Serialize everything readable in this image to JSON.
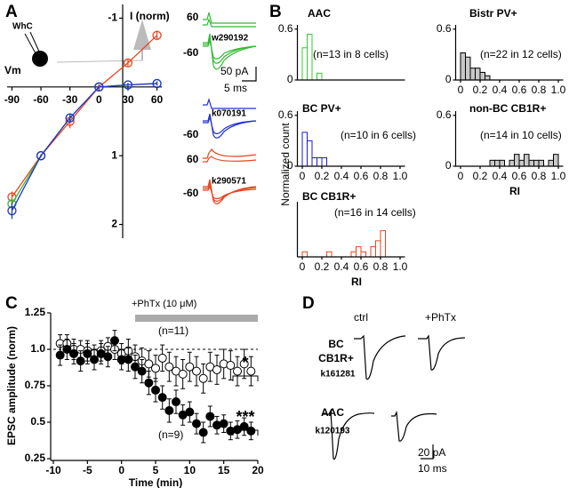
{
  "figure": {
    "panel_labels": [
      "A",
      "B",
      "C",
      "D"
    ],
    "shared_ylabel_B": "Normalized count"
  },
  "insets_A": {
    "cell": "WhC",
    "groups": [
      {
        "labels": [
          "60",
          "-60",
          "w290192"
        ]
      },
      {
        "labels": [
          "-60",
          "k070191"
        ]
      },
      {
        "labels": [
          "60",
          "-60",
          "k290571"
        ]
      }
    ],
    "scale": [
      "50 pA",
      "5 ms"
    ]
  },
  "panel_D": {
    "conditions": [
      "ctrl",
      "+PhTx"
    ],
    "cells": [
      {
        "name_lines": [
          "BC",
          "CB1R+"
        ],
        "id": "k161281"
      },
      {
        "name_lines": [
          "AAC"
        ],
        "id": "k120193"
      }
    ],
    "scale": [
      "20 pA",
      "10 ms"
    ]
  },
  "chart_data": [
    {
      "type": "line",
      "xlabel": "Vm",
      "ylabel": "I (norm)",
      "xlim": [
        -95,
        65
      ],
      "ylim": [
        -1.2,
        2.2
      ],
      "y_inverted": true,
      "xticks": [
        -90,
        -60,
        -30,
        0,
        30,
        60
      ],
      "yticks": [
        -1,
        1,
        2
      ],
      "x": [
        -90,
        -60,
        -30,
        0,
        30,
        60
      ],
      "series": [
        {
          "color": "#e8461e",
          "values": [
            1.6,
            1.0,
            0.5,
            0.0,
            -0.35,
            -0.75
          ],
          "errors": [
            0.08,
            0.02,
            0.1,
            0.04,
            0.05,
            0.07
          ]
        },
        {
          "color": "#33bb33",
          "values": [
            1.7,
            1.0,
            0.45,
            0.0,
            -0.03,
            -0.05
          ],
          "errors": [
            0.08,
            0.02,
            0.05,
            0.03,
            0.03,
            0.03
          ]
        },
        {
          "color": "#2233cc",
          "values": [
            1.8,
            1.0,
            0.45,
            0.0,
            -0.03,
            -0.05
          ],
          "errors": [
            0.12,
            0.02,
            0.06,
            0.03,
            0.03,
            0.03
          ]
        }
      ]
    },
    {
      "type": "histogram",
      "title": "AAC",
      "title_color": "#33cc33",
      "annotation": "(n=13 in 8 cells)",
      "color": "#33cc33",
      "fill": "#ffffff",
      "xlim": [
        -0.05,
        1.05
      ],
      "ylim": [
        0,
        0.65
      ],
      "yticks": [
        0,
        0.6
      ],
      "bins": [
        0,
        0.05,
        0.1,
        0.15,
        0.2,
        0.25,
        0.3,
        0.35,
        0.4,
        0.45,
        0.5,
        0.55,
        0.6,
        0.65,
        0.7,
        0.75,
        0.8,
        0.85,
        0.9,
        0.95,
        1.0,
        1.05
      ],
      "values": [
        0.38,
        0.54,
        0,
        0.08,
        0,
        0,
        0,
        0,
        0,
        0,
        0,
        0,
        0,
        0,
        0,
        0,
        0,
        0,
        0,
        0,
        0
      ]
    },
    {
      "type": "histogram",
      "title": "Bistr PV+",
      "title_color": "#000000",
      "annotation": "(n=22 in 12 cells)",
      "color": "#000000",
      "fill": "#c8c8c8",
      "xlim": [
        -0.05,
        1.05
      ],
      "ylim": [
        0,
        0.65
      ],
      "yticks": [
        0,
        0.6
      ],
      "xticks": [
        0,
        0.2,
        0.4,
        0.6,
        0.8,
        {
          "value": 1.0,
          "label": "1.0"
        }
      ],
      "bins": [
        0,
        0.05,
        0.1,
        0.15,
        0.2,
        0.25,
        0.3,
        0.35,
        0.4,
        0.45,
        0.5,
        0.55,
        0.6,
        0.65,
        0.7,
        0.75,
        0.8,
        0.85,
        0.9,
        0.95,
        1.0,
        1.05
      ],
      "values": [
        0.32,
        0.27,
        0.14,
        0.14,
        0.09,
        0.05,
        0,
        0,
        0,
        0,
        0,
        0,
        0,
        0,
        0,
        0,
        0,
        0,
        0,
        0,
        0
      ]
    },
    {
      "type": "histogram",
      "title": "BC PV+",
      "title_color": "#1a1adb",
      "annotation": "(n=10 in 6 cells)",
      "color": "#1a1adb",
      "fill": "#ffffff",
      "xlim": [
        -0.05,
        1.05
      ],
      "ylim": [
        0,
        0.65
      ],
      "yticks": [
        0,
        0.6
      ],
      "xticks": [
        0,
        0.2,
        0.4,
        0.6,
        0.8,
        {
          "value": 1.0,
          "label": "1.0"
        }
      ],
      "bins": [
        0,
        0.05,
        0.1,
        0.15,
        0.2,
        0.25,
        0.3,
        0.35,
        0.4,
        0.45,
        0.5,
        0.55,
        0.6,
        0.65,
        0.7,
        0.75,
        0.8,
        0.85,
        0.9,
        0.95,
        1.0,
        1.05
      ],
      "values": [
        0.4,
        0.3,
        0.1,
        0.1,
        0.1,
        0,
        0,
        0,
        0,
        0,
        0,
        0,
        0,
        0,
        0,
        0,
        0,
        0,
        0,
        0,
        0
      ]
    },
    {
      "type": "histogram",
      "title": "non-BC CB1R+",
      "title_color": "#000000",
      "annotation": "(n=14 in 10 cells)",
      "color": "#000000",
      "fill": "#c8c8c8",
      "xlabel": "RI",
      "xlim": [
        -0.05,
        1.05
      ],
      "ylim": [
        0,
        0.65
      ],
      "yticks": [
        0,
        0.6
      ],
      "xticks": [
        0,
        0.2,
        0.4,
        0.6,
        0.8,
        {
          "value": 1.0,
          "label": "1.0"
        }
      ],
      "bins": [
        0,
        0.05,
        0.1,
        0.15,
        0.2,
        0.25,
        0.3,
        0.35,
        0.4,
        0.45,
        0.5,
        0.55,
        0.6,
        0.65,
        0.7,
        0.75,
        0.8,
        0.85,
        0.9,
        0.95,
        1.0,
        1.05
      ],
      "values": [
        0,
        0,
        0,
        0,
        0,
        0,
        0.07,
        0.07,
        0.07,
        0,
        0.07,
        0.14,
        0.07,
        0.14,
        0.07,
        0.07,
        0.07,
        0,
        0.07,
        0.14,
        0
      ]
    },
    {
      "type": "histogram",
      "title": "BC CB1R+",
      "title_color": "#e8461e",
      "annotation": "(n=16 in 14 cells)",
      "color": "#e8461e",
      "fill": "#ffffff",
      "xlabel": "RI",
      "xlim": [
        -0.05,
        1.05
      ],
      "ylim": [
        0,
        0.65
      ],
      "xticks": [
        0,
        0.2,
        0.4,
        0.6,
        0.8,
        {
          "value": 1.0,
          "label": "1.0"
        }
      ],
      "bins": [
        0,
        0.05,
        0.1,
        0.15,
        0.2,
        0.25,
        0.3,
        0.35,
        0.4,
        0.45,
        0.5,
        0.55,
        0.6,
        0.65,
        0.7,
        0.75,
        0.8,
        0.85,
        0.9,
        0.95,
        1.0,
        1.05
      ],
      "values": [
        0.06,
        0,
        0,
        0,
        0,
        0.06,
        0,
        0,
        0,
        0,
        0.06,
        0.12,
        0.06,
        0,
        0.12,
        0.19,
        0.31,
        0,
        0,
        0,
        0
      ]
    },
    {
      "type": "scatter",
      "xlabel": "Time (min)",
      "ylabel": "EPSC amplitude (norm)",
      "xlim": [
        -10,
        20
      ],
      "ylim": [
        0.25,
        1.25
      ],
      "xticks": [
        -10,
        -5,
        0,
        5,
        10,
        15,
        20
      ],
      "yticks": [
        0.25,
        0.5,
        0.75,
        {
          "value": 1.0,
          "label": "1.0"
        },
        1.25
      ],
      "reference_line": 1.0,
      "treatment": {
        "label": "+PhTx (10 μM)",
        "range": [
          2,
          20
        ]
      },
      "annotations": [
        "(n=11)",
        "(n=9)",
        "*",
        "***"
      ],
      "x": [
        -9,
        -8,
        -7,
        -6,
        -5,
        -4,
        -3,
        -2,
        -1,
        0,
        1,
        2,
        3,
        4,
        5,
        6,
        7,
        8,
        9,
        10,
        11,
        12,
        13,
        14,
        15,
        16,
        17,
        18,
        19
      ],
      "series": [
        {
          "marker": "open",
          "color": "#000000",
          "values": [
            1.04,
            1.04,
            1.0,
            1.0,
            0.99,
            0.97,
            0.99,
            1.02,
            1.0,
            0.97,
            0.99,
            0.95,
            0.92,
            0.9,
            0.87,
            0.94,
            0.88,
            0.85,
            0.83,
            0.88,
            0.85,
            0.8,
            0.88,
            0.86,
            0.9,
            0.89,
            0.85,
            0.9,
            0.85
          ],
          "errors": [
            0.06,
            0.06,
            0.07,
            0.06,
            0.07,
            0.06,
            0.07,
            0.06,
            0.07,
            0.07,
            0.08,
            0.08,
            0.09,
            0.09,
            0.09,
            0.09,
            0.1,
            0.1,
            0.1,
            0.1,
            0.1,
            0.1,
            0.1,
            0.1,
            0.1,
            0.1,
            0.1,
            0.1,
            0.1
          ]
        },
        {
          "marker": "filled",
          "color": "#000000",
          "values": [
            0.96,
            1.0,
            0.97,
            0.92,
            0.97,
            0.93,
            0.97,
            0.95,
            1.06,
            0.93,
            0.93,
            0.88,
            0.85,
            0.77,
            0.72,
            0.67,
            0.58,
            0.64,
            0.55,
            0.57,
            0.49,
            0.43,
            0.54,
            0.48,
            0.49,
            0.44,
            0.45,
            0.47,
            0.44
          ],
          "errors": [
            0.07,
            0.07,
            0.07,
            0.07,
            0.07,
            0.07,
            0.07,
            0.07,
            0.07,
            0.07,
            0.08,
            0.08,
            0.08,
            0.08,
            0.08,
            0.08,
            0.08,
            0.08,
            0.07,
            0.07,
            0.07,
            0.07,
            0.07,
            0.06,
            0.06,
            0.06,
            0.06,
            0.06,
            0.06
          ]
        }
      ]
    }
  ]
}
